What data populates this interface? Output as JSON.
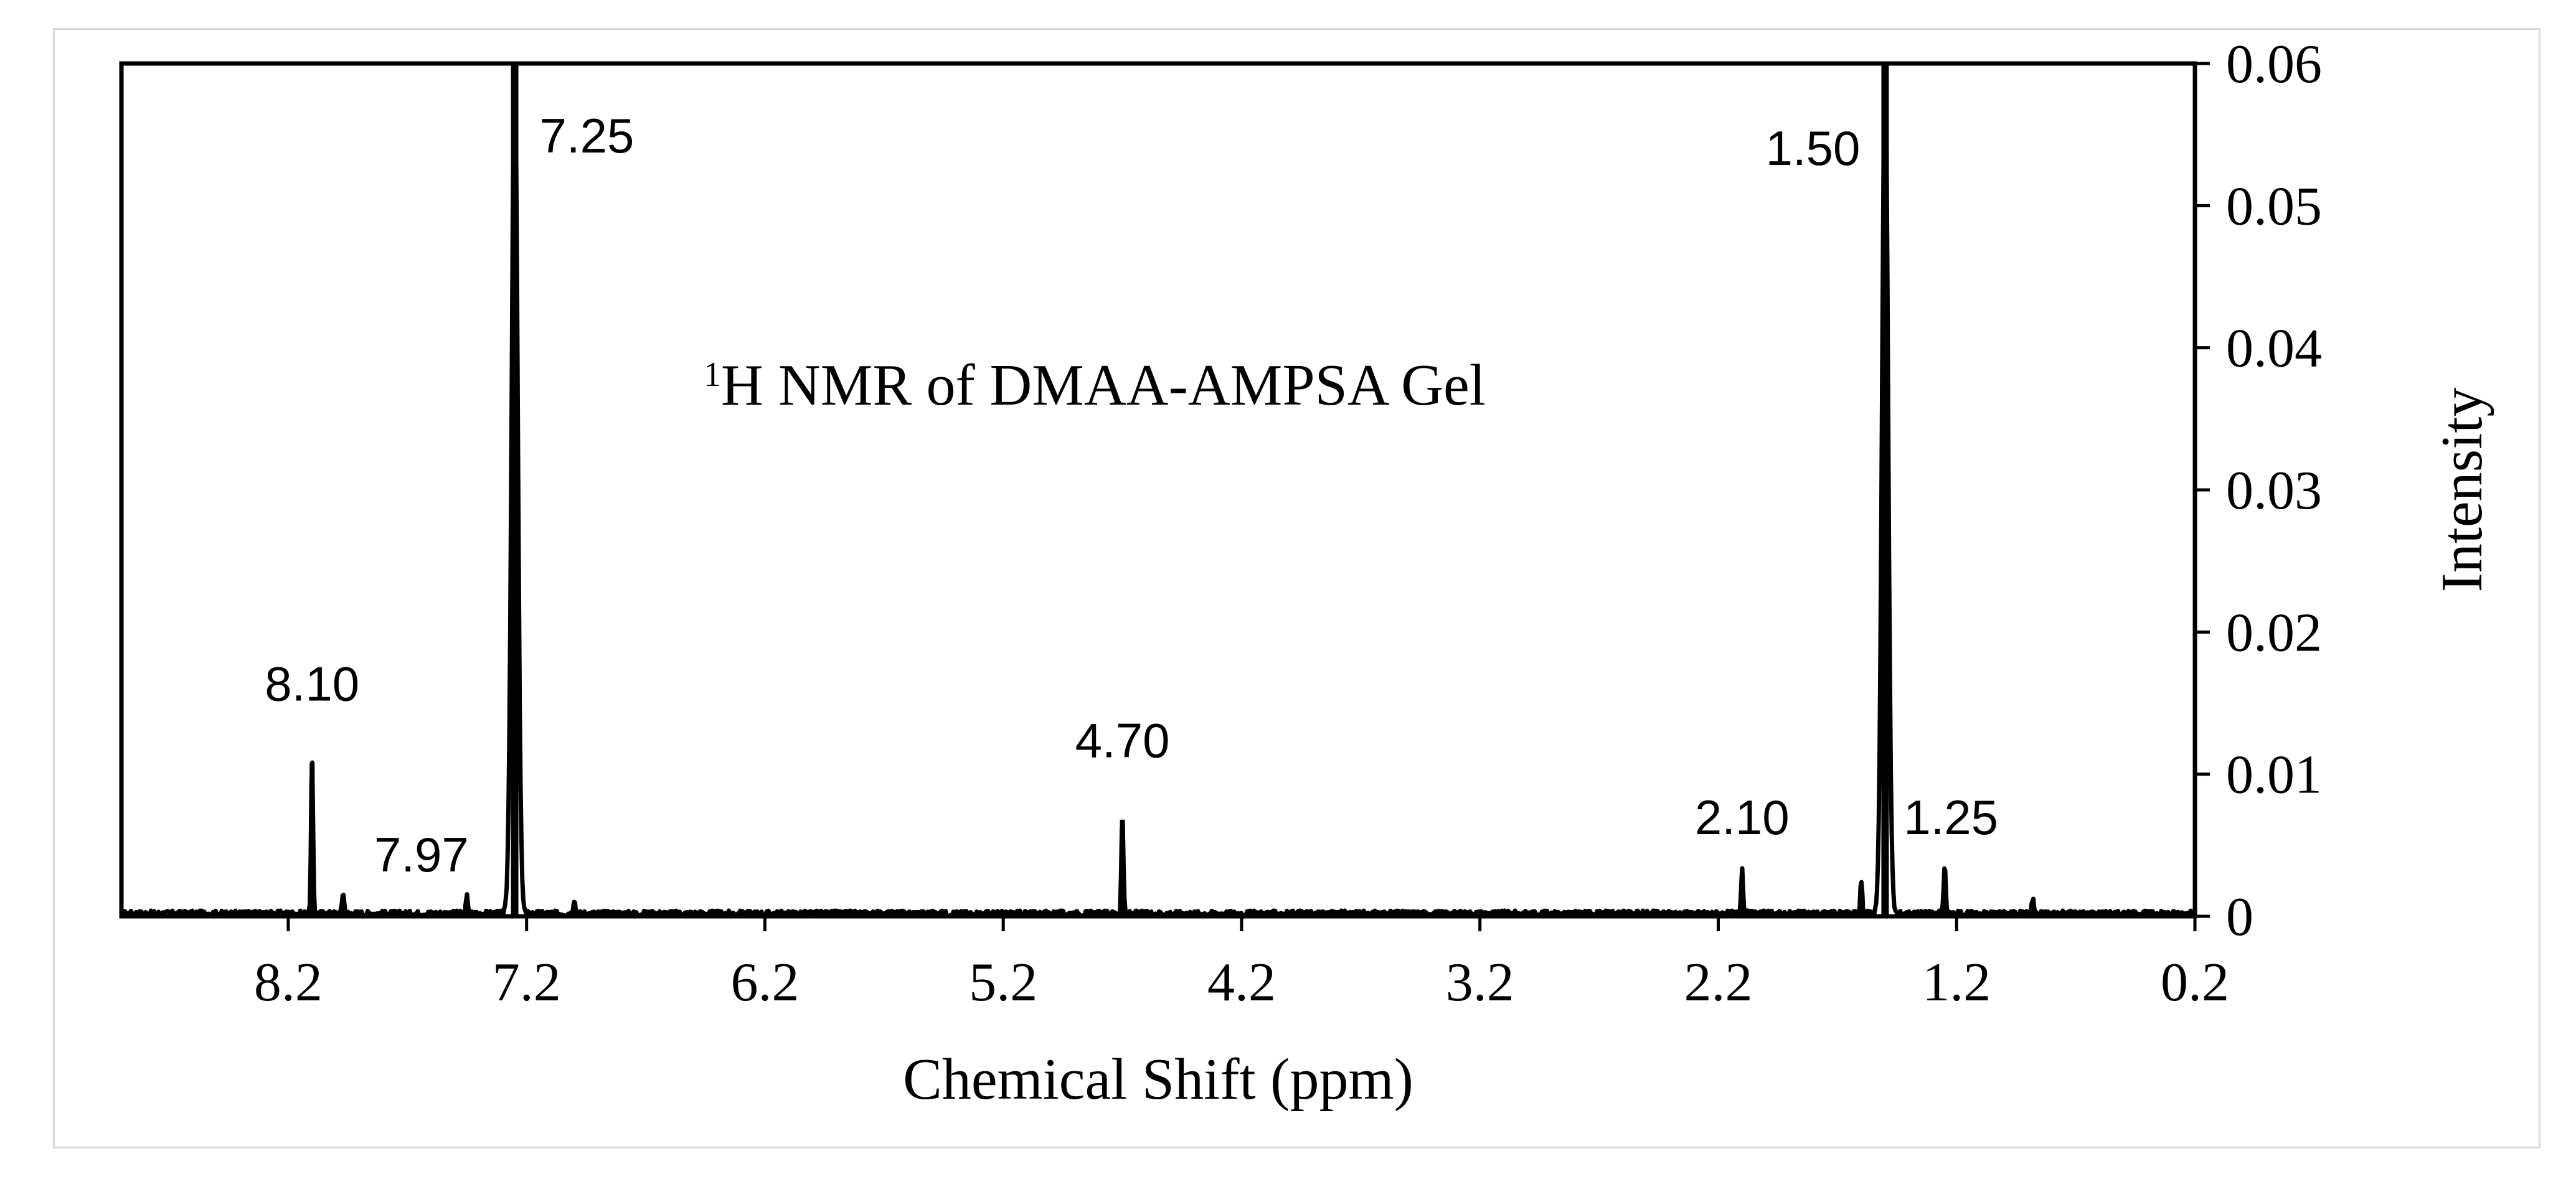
{
  "chart_data": {
    "type": "line",
    "title": "NMR of DMAA-AMPSA Gel",
    "title_superscript": "1",
    "title_prefix": "H",
    "xlabel": "Chemical Shift (ppm)",
    "ylabel": "Intensity",
    "x_reversed": true,
    "xlim": [
      8.9,
      0.2
    ],
    "ylim": [
      0,
      0.06
    ],
    "x_ticks": [
      "8.2",
      "7.2",
      "6.2",
      "5.2",
      "4.2",
      "3.2",
      "2.2",
      "1.2",
      "0.2"
    ],
    "y_ticks": [
      "0",
      "0.01",
      "0.02",
      "0.03",
      "0.04",
      "0.05",
      "0.06"
    ],
    "y_axis_position": "right",
    "grid": false,
    "legend": "none",
    "series": [
      {
        "color": "#000000",
        "baseline": 0.0002,
        "peaks": [
          {
            "x": 8.1,
            "y": 0.0108
          },
          {
            "x": 7.97,
            "y": 0.0015
          },
          {
            "x": 7.45,
            "y": 0.0012
          },
          {
            "x": 7.25,
            "y": 0.06
          },
          {
            "x": 7.0,
            "y": 0.001
          },
          {
            "x": 4.7,
            "y": 0.0068
          },
          {
            "x": 2.1,
            "y": 0.003
          },
          {
            "x": 1.6,
            "y": 0.0022
          },
          {
            "x": 1.5,
            "y": 0.06
          },
          {
            "x": 1.25,
            "y": 0.0033
          },
          {
            "x": 0.88,
            "y": 0.0011
          }
        ]
      }
    ],
    "peak_labels": [
      {
        "x": 8.1,
        "text": "8.10"
      },
      {
        "x": 7.97,
        "text": "7.97"
      },
      {
        "x": 7.25,
        "text": "7.25"
      },
      {
        "x": 4.7,
        "text": "4.70"
      },
      {
        "x": 2.1,
        "text": "2.10"
      },
      {
        "x": 1.5,
        "text": "1.50"
      },
      {
        "x": 1.25,
        "text": "1.25"
      }
    ]
  }
}
